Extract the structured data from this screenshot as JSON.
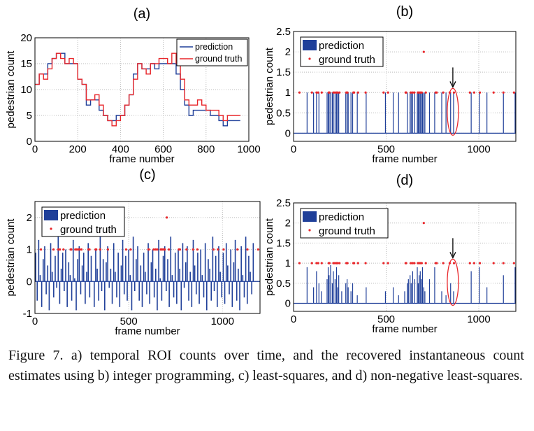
{
  "caption": "Figure 7. a) temporal ROI counts over time, and the recovered instantaneous count estimates using b) integer programming, c) least-squares, and d) non-negative least-squares.",
  "colors": {
    "prediction": "#1f3f99",
    "ground_truth": "#e8262a",
    "annotation": "#e8262a"
  },
  "chart_data": [
    {
      "panel": "(a)",
      "type": "line",
      "xlabel": "frame number",
      "ylabel": "pedestrian count",
      "xlim": [
        0,
        1000
      ],
      "ylim": [
        0,
        20
      ],
      "xticks": [
        0,
        200,
        400,
        600,
        800,
        1000
      ],
      "yticks": [
        0,
        5,
        10,
        15,
        20
      ],
      "grid": true,
      "legend": "top-right",
      "x": [
        0,
        20,
        40,
        60,
        80,
        100,
        120,
        140,
        160,
        180,
        200,
        220,
        240,
        260,
        280,
        300,
        320,
        340,
        360,
        380,
        400,
        420,
        440,
        460,
        480,
        500,
        520,
        540,
        560,
        580,
        600,
        620,
        640,
        660,
        680,
        700,
        720,
        740,
        760,
        780,
        800,
        820,
        840,
        860,
        880,
        900,
        920,
        940,
        960
      ],
      "series": [
        {
          "name": "prediction",
          "values": [
            11,
            13,
            13,
            15,
            16,
            17,
            17,
            15,
            15,
            15,
            12,
            11,
            7,
            8,
            8,
            6,
            5,
            4,
            4,
            5,
            5,
            7,
            9,
            13,
            15,
            14,
            14,
            15,
            14,
            15,
            15,
            15,
            15,
            13,
            10,
            7,
            5,
            6,
            6,
            6,
            6,
            5,
            5,
            4,
            3,
            4,
            4,
            4,
            4
          ]
        },
        {
          "name": "ground truth",
          "values": [
            11,
            13,
            12,
            14,
            16,
            17,
            16,
            15,
            16,
            15,
            12,
            11,
            8,
            8,
            9,
            7,
            5,
            4,
            3,
            4,
            5,
            7,
            9,
            12,
            15,
            14,
            13,
            15,
            15,
            16,
            16,
            15,
            17,
            15,
            12,
            8,
            7,
            7,
            8,
            7,
            6,
            6,
            6,
            5,
            4,
            5,
            5,
            5,
            5
          ]
        }
      ]
    },
    {
      "panel": "(b)",
      "type": "bar",
      "xlabel": "frame number",
      "ylabel": "pedestrian count",
      "xlim": [
        0,
        1200
      ],
      "ylim": [
        -0.2,
        2.5
      ],
      "xticks": [
        0,
        500,
        1000
      ],
      "yticks": [
        0,
        0.5,
        1,
        1.5,
        2,
        2.5
      ],
      "grid": true,
      "legend": "top-left",
      "annotation": "arrow and ellipse at frame ~860",
      "prediction": {
        "name": "prediction",
        "frames": [
          73,
          108,
          124,
          137,
          181,
          187,
          192,
          200,
          209,
          215,
          224,
          232,
          238,
          244,
          282,
          289,
          295,
          310,
          319,
          344,
          392,
          496,
          538,
          567,
          614,
          629,
          635,
          643,
          653,
          668,
          673,
          678,
          684,
          690,
          696,
          703,
          709,
          734,
          762,
          800,
          823,
          848,
          864,
          959,
          1003,
          1044,
          1133,
          1196
        ],
        "value": 1
      },
      "ground_truth": {
        "name": "ground truth",
        "frames": [
          32,
          99,
          124,
          133,
          152,
          190,
          194,
          215,
          223,
          232,
          238,
          248,
          285,
          291,
          323,
          327,
          348,
          389,
          486,
          510,
          605,
          608,
          633,
          643,
          652,
          671,
          677,
          684,
          692,
          714,
          767,
          773,
          808,
          843,
          866,
          952,
          975,
          1006,
          1080,
          1133,
          1190,
          703
        ],
        "values": [
          1,
          1,
          1,
          1,
          1,
          1,
          1,
          1,
          1,
          1,
          1,
          1,
          1,
          1,
          1,
          1,
          1,
          1,
          1,
          1,
          1,
          1,
          1,
          1,
          1,
          1,
          1,
          1,
          1,
          1,
          1,
          1,
          1,
          1,
          1,
          1,
          1,
          1,
          1,
          1,
          1,
          2
        ]
      }
    },
    {
      "panel": "(c)",
      "type": "bar",
      "xlabel": "frame number",
      "ylabel": "pedestrian count",
      "xlim": [
        0,
        1200
      ],
      "ylim": [
        -1,
        2.5
      ],
      "xticks": [
        0,
        500,
        1000
      ],
      "yticks": [
        -1,
        0,
        1,
        2
      ],
      "grid": true,
      "legend": "top-left",
      "prediction": {
        "name": "prediction",
        "step": 8,
        "values": [
          0.9,
          -0.6,
          1.3,
          0.2,
          -0.8,
          0.7,
          1.1,
          -0.4,
          0.5,
          -0.9,
          1.2,
          0.3,
          -0.5,
          0.8,
          -0.2,
          1.4,
          -0.7,
          0.4,
          0.9,
          -0.3,
          1.0,
          -0.8,
          0.6,
          0.2,
          -0.6,
          1.3,
          0.1,
          -0.9,
          0.7,
          1.1,
          -0.4,
          0.5,
          0.9,
          -0.7,
          0.3,
          1.2,
          -0.5,
          0.8,
          0.0,
          -0.8,
          1.0,
          0.4,
          -0.6,
          1.5,
          -0.3,
          0.7,
          -0.9,
          0.6,
          1.1,
          -0.2,
          0.4,
          -0.7,
          1.2,
          0.3,
          -0.5,
          0.9,
          -0.8,
          0.5,
          1.3,
          -0.4,
          0.8,
          -0.6,
          1.0,
          0.2,
          -0.9,
          1.4,
          -0.3,
          0.7,
          1.1,
          -0.6,
          0.5,
          -0.8,
          0.9,
          0.3,
          -0.4,
          1.2,
          -0.7,
          0.6,
          1.0,
          -0.5,
          0.4,
          -0.9,
          1.3,
          0.1,
          -0.6,
          0.8,
          1.1,
          -0.3,
          0.7,
          -0.8,
          1.4,
          0.2,
          -0.5,
          0.9,
          -0.7,
          1.0,
          0.4,
          -0.9,
          1.2,
          -0.2,
          0.6,
          1.1,
          -0.6,
          0.3,
          -0.8,
          1.3,
          0.5,
          -0.4,
          0.9,
          -0.7,
          1.0,
          0.2,
          -0.5,
          1.2,
          -0.9,
          0.7,
          0.4,
          -0.6,
          1.4,
          -0.3,
          0.8,
          -0.8,
          1.1,
          0.3,
          -0.5,
          0.9,
          -0.7,
          1.2,
          0.5,
          -0.4,
          1.0,
          -0.8,
          0.6,
          1.3,
          -0.6,
          0.4,
          -0.9,
          1.1,
          0.2,
          -0.5,
          1.4,
          -0.7,
          0.8,
          0.3,
          -0.4,
          1.2
        ]
      },
      "ground_truth": {
        "name": "ground truth",
        "frames": [
          32,
          99,
          124,
          133,
          152,
          190,
          194,
          215,
          223,
          232,
          238,
          248,
          285,
          291,
          323,
          327,
          348,
          389,
          486,
          510,
          605,
          608,
          633,
          643,
          652,
          671,
          677,
          684,
          692,
          714,
          767,
          773,
          808,
          843,
          866,
          952,
          975,
          1006,
          1080,
          1133,
          1190,
          703
        ],
        "values": [
          1,
          1,
          1,
          1,
          1,
          1,
          1,
          1,
          1,
          1,
          1,
          1,
          1,
          1,
          1,
          1,
          1,
          1,
          1,
          1,
          1,
          1,
          1,
          1,
          1,
          1,
          1,
          1,
          1,
          1,
          1,
          1,
          1,
          1,
          1,
          1,
          1,
          1,
          1,
          1,
          1,
          2
        ]
      }
    },
    {
      "panel": "(d)",
      "type": "bar",
      "xlabel": "frame number",
      "ylabel": "pedestrian count",
      "xlim": [
        0,
        1200
      ],
      "ylim": [
        -0.2,
        2.5
      ],
      "xticks": [
        0,
        500,
        1000
      ],
      "yticks": [
        0,
        0.5,
        1,
        1.5,
        2,
        2.5
      ],
      "grid": true,
      "legend": "top-left",
      "annotation": "arrow and ellipse at frame ~860",
      "prediction": {
        "name": "prediction",
        "frames": [
          73,
          108,
          124,
          137,
          150,
          181,
          187,
          192,
          200,
          209,
          215,
          224,
          232,
          238,
          244,
          260,
          282,
          289,
          295,
          310,
          319,
          344,
          392,
          496,
          538,
          567,
          600,
          614,
          620,
          629,
          635,
          643,
          653,
          668,
          673,
          678,
          684,
          690,
          696,
          703,
          709,
          734,
          762,
          800,
          823,
          848,
          864,
          959,
          1003,
          1044,
          1133,
          1196
        ],
        "values": [
          0.9,
          0.4,
          0.8,
          0.5,
          0.3,
          0.6,
          0.9,
          0.7,
          0.95,
          0.5,
          0.8,
          0.6,
          0.9,
          0.4,
          0.7,
          0.3,
          0.5,
          0.6,
          0.4,
          0.3,
          0.5,
          0.2,
          0.4,
          0.3,
          0.4,
          0.2,
          0.3,
          0.5,
          0.6,
          0.7,
          0.5,
          0.8,
          0.6,
          0.9,
          0.5,
          0.7,
          0.8,
          0.6,
          0.9,
          0.4,
          0.3,
          0.6,
          0.9,
          0.3,
          0.2,
          0.5,
          0.3,
          0.8,
          0.9,
          0.4,
          0.7,
          0.9
        ]
      },
      "ground_truth": {
        "name": "ground truth",
        "frames": [
          32,
          99,
          124,
          133,
          152,
          190,
          194,
          215,
          223,
          232,
          238,
          248,
          285,
          291,
          323,
          327,
          348,
          389,
          486,
          510,
          605,
          608,
          633,
          643,
          652,
          671,
          677,
          684,
          692,
          714,
          767,
          773,
          808,
          843,
          866,
          952,
          975,
          1006,
          1080,
          1133,
          1190,
          703
        ],
        "values": [
          1,
          1,
          1,
          1,
          1,
          1,
          1,
          1,
          1,
          1,
          1,
          1,
          1,
          1,
          1,
          1,
          1,
          1,
          1,
          1,
          1,
          1,
          1,
          1,
          1,
          1,
          1,
          1,
          1,
          1,
          1,
          1,
          1,
          1,
          1,
          1,
          1,
          1,
          1,
          1,
          1,
          2
        ]
      }
    }
  ]
}
